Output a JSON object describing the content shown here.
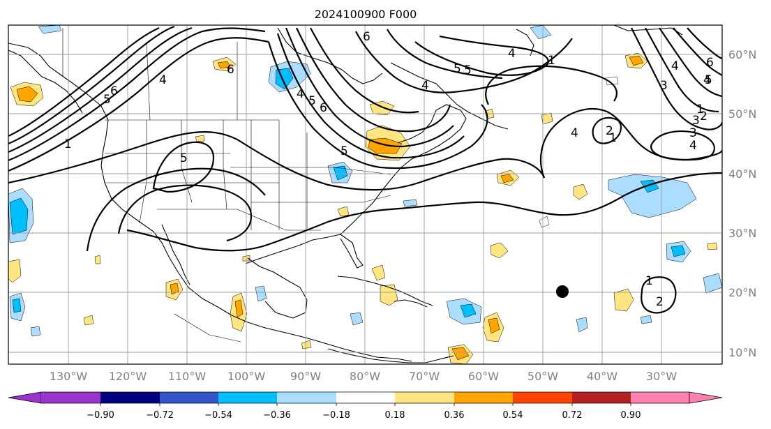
{
  "title": "2024100900 F000",
  "lon_labels": [
    "130°W",
    "120°W",
    "110°W",
    "100°W",
    "90°W",
    "80°W",
    "70°W",
    "60°W",
    "50°W",
    "40°W",
    "30°W"
  ],
  "lat_labels": [
    "60°N",
    "50°N",
    "40°N",
    "30°N",
    "20°N",
    "10°N"
  ],
  "colorbar": {
    "ticks": [
      "−0.90",
      "−0.72",
      "−0.54",
      "−0.36",
      "−0.18",
      "0.18",
      "0.36",
      "0.54",
      "0.72",
      "0.90"
    ],
    "colors": [
      "#9933cc",
      "#000080",
      "#3355cc",
      "#00bfff",
      "#aaddff",
      "#ffffff",
      "#ffe680",
      "#ffa500",
      "#ff4500",
      "#b22222",
      "#ff80b0"
    ]
  },
  "contour_labels": [
    "1",
    "5",
    "6",
    "4",
    "5",
    "6",
    "4",
    "5",
    "6",
    "4",
    "5",
    "6",
    "5",
    "5",
    "4",
    "1",
    "1",
    "2",
    "3",
    "4",
    "3",
    "4",
    "4",
    "1",
    "2",
    "3",
    "4",
    "5",
    "6",
    "1",
    "2"
  ],
  "marker": "storm-center-marker"
}
